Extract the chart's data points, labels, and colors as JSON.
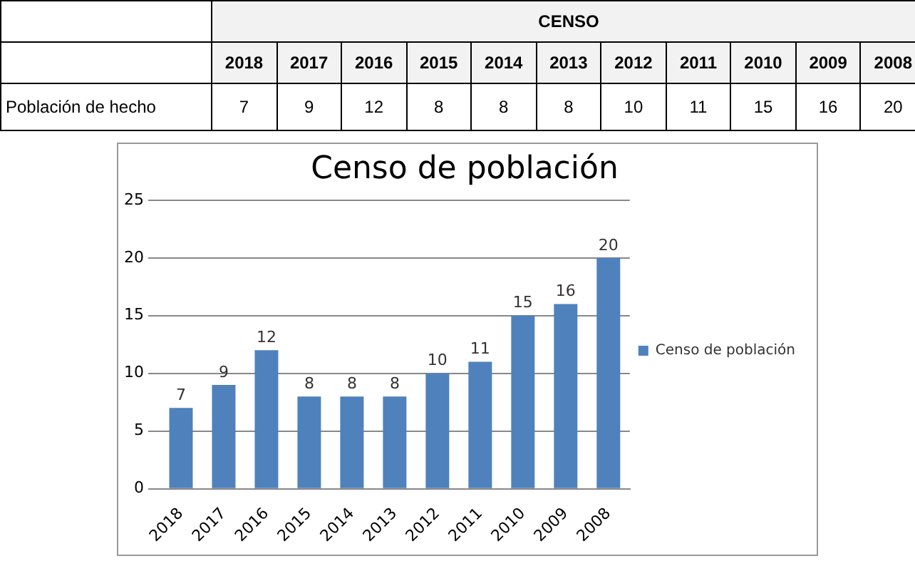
{
  "chart_data": [
    {
      "type": "heatmap",
      "title": "CENSO",
      "categories": [
        "2018",
        "2017",
        "2016",
        "2015",
        "2014",
        "2013",
        "2012",
        "2011",
        "2010",
        "2009",
        "2008"
      ],
      "y_categories": [
        "Población de hecho"
      ],
      "cells": [
        [
          7,
          9,
          12,
          8,
          8,
          8,
          10,
          11,
          15,
          16,
          20
        ]
      ],
      "data_labels": true
    },
    {
      "type": "bar",
      "title": "Censo de población",
      "categories": [
        "2018",
        "2017",
        "2016",
        "2015",
        "2014",
        "2013",
        "2012",
        "2011",
        "2010",
        "2009",
        "2008"
      ],
      "series": [
        {
          "name": "Censo de población",
          "color": "#4f81bd",
          "values": [
            7,
            9,
            12,
            8,
            8,
            8,
            10,
            11,
            15,
            16,
            20
          ]
        }
      ],
      "ylim": [
        0,
        25
      ],
      "yticks": [
        0,
        5,
        10,
        15,
        20,
        25
      ],
      "grid": "y",
      "legend": "right",
      "data_labels": true
    }
  ]
}
